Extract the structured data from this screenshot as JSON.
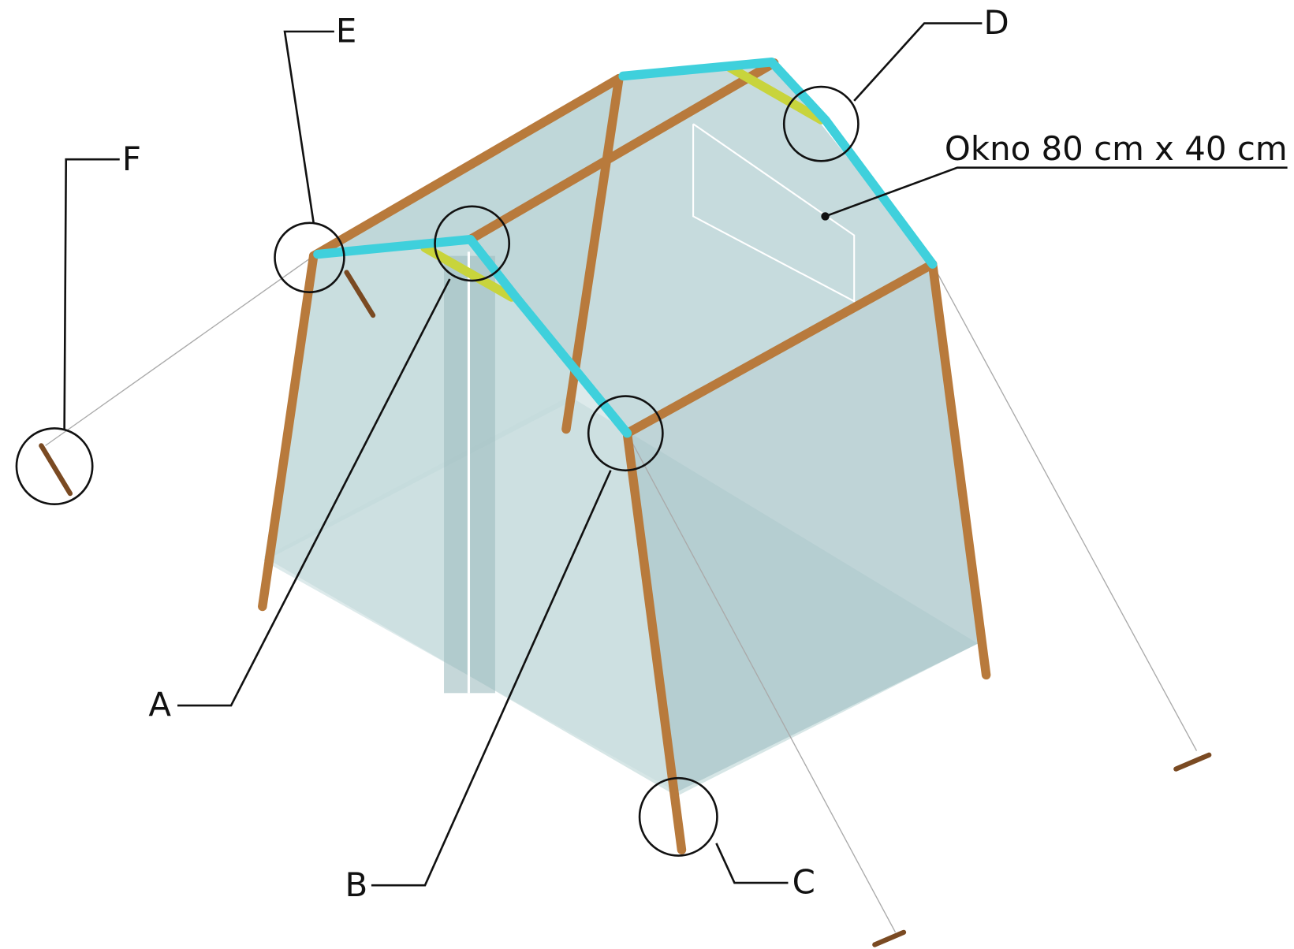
{
  "callouts": [
    {
      "label": "A"
    },
    {
      "label": "B"
    },
    {
      "label": "C"
    },
    {
      "label": "D"
    },
    {
      "label": "E"
    },
    {
      "label": "F"
    }
  ],
  "annotation": "Okno 80 cm x 40 cm"
}
